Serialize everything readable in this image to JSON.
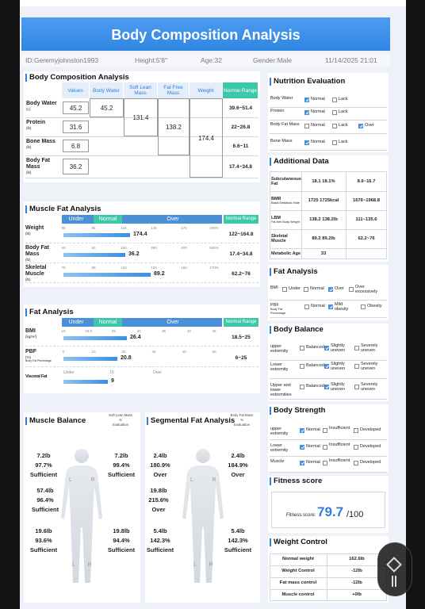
{
  "header": {
    "title": "Body Composition Analysis",
    "id": "ID:Geremyjohnston1993",
    "height": "Height:5'8''",
    "age": "Age:32",
    "gender": "Gender:Male",
    "datetime": "11/14/2025 21:01"
  },
  "composition": {
    "title": "Body Composition Analysis",
    "columns": [
      "Values",
      "Body Water",
      "Soft Lean Mass",
      "Fat Free Mass",
      "Weight",
      "Normal Range"
    ],
    "rows": [
      {
        "label": "Body Water",
        "unit": "(L)",
        "value": "45.2",
        "range": "39.6~51.4"
      },
      {
        "label": "Protein",
        "unit": "(lb)",
        "value": "31.6",
        "range": "22~26.8"
      },
      {
        "label": "Bone Mass",
        "unit": "(lb)",
        "value": "6.8",
        "range": "6.6~11"
      },
      {
        "label": "Body Fat Mass",
        "unit": "(lb)",
        "value": "36.2",
        "range": "17.4~34.8"
      }
    ],
    "body_water": "45.2",
    "soft_lean_mass": "131.4",
    "fat_free_mass": "138.2",
    "weight": "174.4"
  },
  "muscle_fat": {
    "title": "Muscle Fat Analysis",
    "levels": [
      "Under",
      "Normal",
      "Over"
    ],
    "range_header": "Normal Range",
    "rows": [
      {
        "label": "Weight",
        "unit": "(lb)",
        "scale": [
          "55",
          "85",
          "115",
          "145",
          "175",
          "205%"
        ],
        "value": "174.4",
        "range": "122~164.8"
      },
      {
        "label": "Body Fat Mass",
        "unit": "(lb)",
        "scale": [
          "40",
          "80",
          "160",
          "280",
          "400",
          "520%"
        ],
        "value": "36.2",
        "range": "17.4~34.8"
      },
      {
        "label": "Skeletal Muscle",
        "unit": "(lb)",
        "scale": [
          "70",
          "90",
          "110",
          "130",
          "150",
          "170%"
        ],
        "value": "89.2",
        "range": "62.2~76"
      }
    ]
  },
  "fat_analysis": {
    "title": "Fat Analysis",
    "levels": [
      "Under",
      "Normal",
      "Over"
    ],
    "range_header": "Normal Range",
    "rows": [
      {
        "label": "BMI",
        "unit": "(kg/m²)",
        "scale": [
          "10",
          "18.5",
          "25",
          "30",
          "35",
          "40",
          "45"
        ],
        "value": "26.4",
        "range": "18.5~25"
      },
      {
        "label": "PBF",
        "unit": "(%)",
        "sublabel": "Body Fat Percentage",
        "scale": [
          "0",
          "10",
          "20",
          "30",
          "40",
          "50"
        ],
        "value": "20.8",
        "range": "6~25"
      }
    ],
    "visceral": {
      "label": "Visceral Fat",
      "scale": [
        "Under",
        "10",
        "Over"
      ],
      "value": "9"
    }
  },
  "muscle_balance": {
    "title": "Muscle Balance",
    "note": [
      "Soft Lean Mass",
      "%",
      "Evaluation"
    ],
    "side_labels": [
      "L",
      "R"
    ],
    "segments": {
      "left_arm": {
        "mass": "7.2lb",
        "percent": "97.7%",
        "evaluation": "Sufficient"
      },
      "right_arm": {
        "mass": "7.2lb",
        "percent": "99.4%",
        "evaluation": "Sufficient"
      },
      "trunk": {
        "mass": "57.4lb",
        "percent": "96.4%",
        "evaluation": "Sufficient"
      },
      "left_leg": {
        "mass": "19.6lb",
        "percent": "93.6%",
        "evaluation": "Sufficient"
      },
      "right_leg": {
        "mass": "19.8lb",
        "percent": "94.4%",
        "evaluation": "Sufficient"
      }
    }
  },
  "segmental_fat": {
    "title": "Segmental Fat Analysis",
    "note": [
      "Body Fat Mass",
      "%",
      "Evaluation"
    ],
    "side_labels": [
      "L",
      "R"
    ],
    "segments": {
      "left_arm": {
        "mass": "2.4lb",
        "percent": "180.9%",
        "evaluation": "Over"
      },
      "right_arm": {
        "mass": "2.4lb",
        "percent": "184.9%",
        "evaluation": "Over"
      },
      "trunk": {
        "mass": "19.8lb",
        "percent": "215.6%",
        "evaluation": "Over"
      },
      "left_leg": {
        "mass": "5.4lb",
        "percent": "142.3%",
        "evaluation": "Sufficient"
      },
      "right_leg": {
        "mass": "5.4lb",
        "percent": "142.3%",
        "evaluation": "Sufficient"
      }
    }
  },
  "nutrition": {
    "title": "Nutrition Evaluation",
    "rows": [
      {
        "label": "Body Water",
        "options": [
          {
            "label": "Normal",
            "checked": true
          },
          {
            "label": "Lack",
            "checked": false
          }
        ]
      },
      {
        "label": "Protein",
        "options": [
          {
            "label": "Normal",
            "checked": true
          },
          {
            "label": "Lack",
            "checked": false
          }
        ]
      },
      {
        "label": "Body Fat Mass",
        "options": [
          {
            "label": "Normal",
            "checked": false
          },
          {
            "label": "Lack",
            "checked": false
          },
          {
            "label": "Over",
            "checked": true
          }
        ]
      },
      {
        "label": "Bone Mass",
        "options": [
          {
            "label": "Normal",
            "checked": true
          },
          {
            "label": "Lack",
            "checked": false
          }
        ]
      }
    ]
  },
  "additional": {
    "title": "Additional Data",
    "rows": [
      {
        "label": "Subcutaneous Fat",
        "value": "18.1 18.1%",
        "range": "8.6~16.7"
      },
      {
        "label": "BMR",
        "sublabel": "Basal Metabolic Rate",
        "value": "1725 1725kcal",
        "range": "1676~1968.8"
      },
      {
        "label": "LBM",
        "sublabel": "Fat-free Body Weight",
        "value": "138.2 138.2lb",
        "range": "111~135.6"
      },
      {
        "label": "Skeletal Muscle",
        "value": "89.2 89.2lb",
        "range": "62.2~76"
      },
      {
        "label": "Metabolic Age",
        "value": "33"
      }
    ]
  },
  "fat_eval": {
    "title": "Fat Analysis",
    "rows": [
      {
        "label": "BMI",
        "options": [
          {
            "label": "Under",
            "checked": false
          },
          {
            "label": "Normal",
            "checked": false
          },
          {
            "label": "Over",
            "checked": true
          },
          {
            "label": "Over excessively",
            "checked": false
          }
        ]
      },
      {
        "label": "PBF",
        "sublabel": "Body Fat Percentage",
        "options": [
          {
            "label": "Normal",
            "checked": false
          },
          {
            "label": "Mild obesity",
            "checked": true
          },
          {
            "label": "Obesity",
            "checked": false
          }
        ]
      }
    ]
  },
  "body_balance": {
    "title": "Body Balance",
    "rows": [
      {
        "label": "upper extremity",
        "options": [
          {
            "label": "Balanced",
            "checked": false
          },
          {
            "label": "Slightly uneven",
            "checked": true
          },
          {
            "label": "Severely uneven",
            "checked": false
          }
        ]
      },
      {
        "label": "Lower extremity",
        "options": [
          {
            "label": "Balanced",
            "checked": false
          },
          {
            "label": "Slightly uneven",
            "checked": true
          },
          {
            "label": "Severely uneven",
            "checked": false
          }
        ]
      },
      {
        "label": "Upper and lower extremities",
        "options": [
          {
            "label": "Balanced",
            "checked": false
          },
          {
            "label": "Slightly uneven",
            "checked": true
          },
          {
            "label": "Severely uneven",
            "checked": false
          }
        ]
      }
    ]
  },
  "body_strength": {
    "title": "Body Strength",
    "rows": [
      {
        "label": "upper extremity",
        "options": [
          {
            "label": "Normal",
            "checked": true
          },
          {
            "label": "Insufficient",
            "checked": false
          },
          {
            "label": "Developed",
            "checked": false
          }
        ]
      },
      {
        "label": "Lower extremity",
        "options": [
          {
            "label": "Normal",
            "checked": true
          },
          {
            "label": "Insufficient",
            "checked": false
          },
          {
            "label": "Developed",
            "checked": false
          }
        ]
      },
      {
        "label": "Muscle",
        "options": [
          {
            "label": "Normal",
            "checked": true
          },
          {
            "label": "Insufficient",
            "checked": false
          },
          {
            "label": "Developed",
            "checked": false
          }
        ]
      }
    ]
  },
  "fitness": {
    "title": "Fitness score",
    "label": "Fitness score:",
    "score": "79.7",
    "max": "/100"
  },
  "weight_control": {
    "title": "Weight Control",
    "rows": [
      {
        "label": "Normal weight",
        "value": "162.6lb"
      },
      {
        "label": "Weight Control",
        "value": "-12lb"
      },
      {
        "label": "Fat mass control",
        "value": "-12lb"
      },
      {
        "label": "Muscle control",
        "value": "+0lb"
      }
    ]
  }
}
